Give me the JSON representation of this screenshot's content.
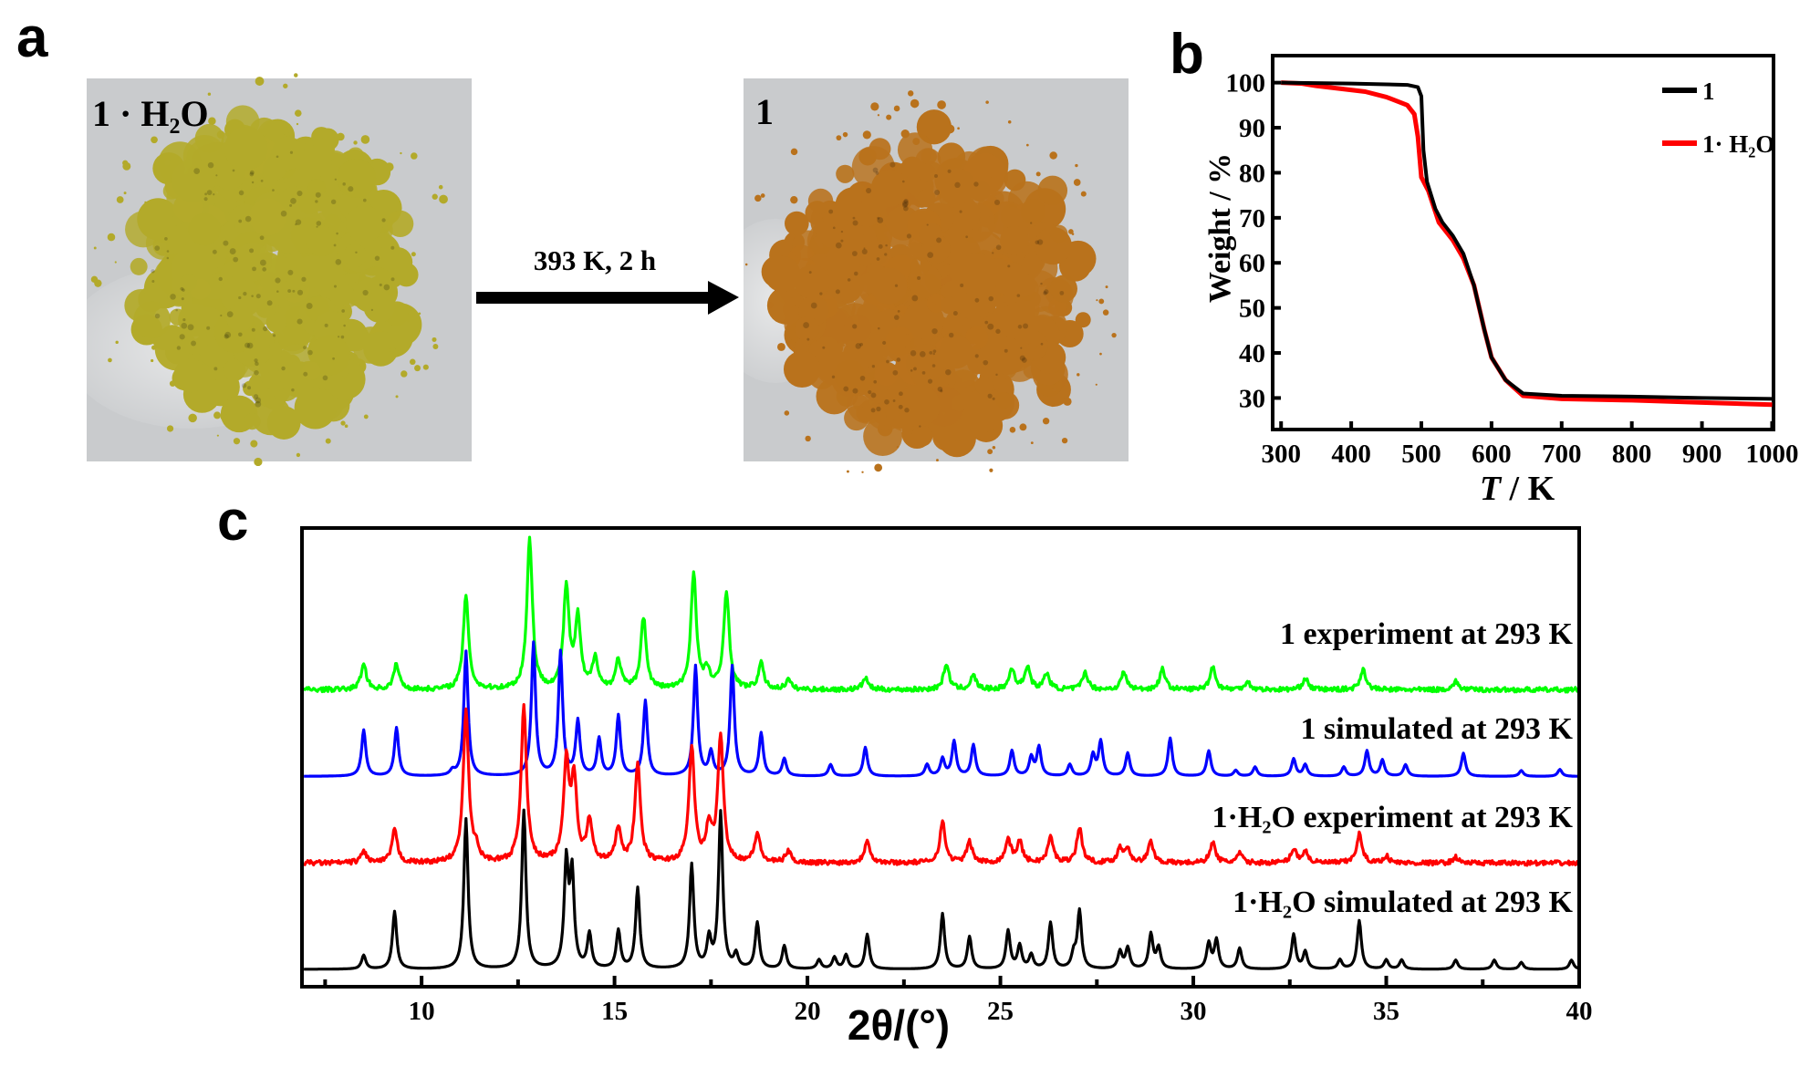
{
  "panel_labels": {
    "a": "a",
    "b": "b",
    "c": "c"
  },
  "photos": {
    "left_label": "1 · H₂O",
    "right_label": "1",
    "arrow_label": "393 K, 2 h",
    "left_color": "#b3aa2a",
    "right_color": "#b9721c",
    "background_color": "#c9cbcd"
  },
  "chart_data": [
    {
      "type": "line",
      "panel": "b",
      "title": "",
      "xlabel_italic": "T",
      "xlabel_unit": " / K",
      "ylabel": "Weight / %",
      "xlim": [
        288,
        1002
      ],
      "ylim": [
        23,
        106
      ],
      "xticks": [
        300,
        400,
        500,
        600,
        700,
        800,
        900,
        1000
      ],
      "yticks": [
        30,
        40,
        50,
        60,
        70,
        80,
        90,
        100
      ],
      "legend_position": "top-right",
      "series": [
        {
          "name": "1",
          "color": "#000000",
          "x": [
            300,
            400,
            480,
            495,
            500,
            503,
            508,
            520,
            530,
            545,
            560,
            575,
            590,
            600,
            620,
            645,
            700,
            800,
            900,
            1000
          ],
          "y": [
            100,
            99.8,
            99.5,
            99,
            97,
            85,
            78,
            72,
            69,
            66,
            62,
            55,
            45,
            39,
            34,
            31,
            30.5,
            30.3,
            30,
            29.8
          ]
        },
        {
          "name": "1· H₂O",
          "color": "#ff0000",
          "x": [
            300,
            330,
            350,
            420,
            450,
            480,
            490,
            495,
            500,
            510,
            525,
            545,
            560,
            575,
            590,
            600,
            620,
            645,
            700,
            800,
            900,
            1000
          ],
          "y": [
            100,
            99.8,
            99.3,
            98,
            96.8,
            95,
            93,
            88,
            79,
            76,
            69,
            65,
            61,
            55,
            45,
            39,
            34,
            30.5,
            29.8,
            29.5,
            29,
            28.5
          ]
        }
      ]
    },
    {
      "type": "line",
      "panel": "c",
      "title": "",
      "xlabel": "2θ/(°)",
      "ylabel": "",
      "xlim": [
        6.9,
        40
      ],
      "ylim": [
        0,
        397
      ],
      "xticks": [
        10,
        15,
        20,
        25,
        30,
        35,
        40
      ],
      "yunit": "a.u. (stacked, offset)",
      "series": [
        {
          "name": "1 experiment at 293 K",
          "color": "#00ff00",
          "offset": 257,
          "experimental": true,
          "peaks": [
            [
              8.5,
              22
            ],
            [
              9.35,
              22
            ],
            [
              11.15,
              80
            ],
            [
              12.8,
              130
            ],
            [
              13.75,
              88
            ],
            [
              14.05,
              60
            ],
            [
              14.5,
              27
            ],
            [
              15.1,
              25
            ],
            [
              15.75,
              62
            ],
            [
              17.05,
              100
            ],
            [
              17.4,
              15
            ],
            [
              17.9,
              85
            ],
            [
              18.8,
              22
            ],
            [
              19.5,
              8
            ],
            [
              21.5,
              10
            ],
            [
              23.6,
              22
            ],
            [
              24.3,
              12
            ],
            [
              25.3,
              18
            ],
            [
              25.7,
              20
            ],
            [
              26.2,
              14
            ],
            [
              27.2,
              15
            ],
            [
              28.2,
              15
            ],
            [
              29.2,
              18
            ],
            [
              30.5,
              20
            ],
            [
              31.4,
              7
            ],
            [
              32.9,
              10
            ],
            [
              34.4,
              18
            ],
            [
              36.8,
              7
            ]
          ]
        },
        {
          "name": "1 simulated at 293 K",
          "color": "#0000ff",
          "offset": 182,
          "experimental": false,
          "peaks": [
            [
              8.5,
              40
            ],
            [
              9.35,
              42
            ],
            [
              10.8,
              4
            ],
            [
              11.15,
              108
            ],
            [
              12.9,
              115
            ],
            [
              13.6,
              107
            ],
            [
              14.05,
              47
            ],
            [
              14.6,
              32
            ],
            [
              15.1,
              52
            ],
            [
              15.8,
              65
            ],
            [
              17.1,
              95
            ],
            [
              17.5,
              20
            ],
            [
              18.05,
              95
            ],
            [
              18.8,
              37
            ],
            [
              19.4,
              15
            ],
            [
              20.6,
              10
            ],
            [
              21.5,
              25
            ],
            [
              23.1,
              10
            ],
            [
              23.5,
              15
            ],
            [
              23.8,
              30
            ],
            [
              24.3,
              27
            ],
            [
              25.3,
              22
            ],
            [
              25.8,
              16
            ],
            [
              26.0,
              25
            ],
            [
              26.8,
              10
            ],
            [
              27.4,
              18
            ],
            [
              27.6,
              30
            ],
            [
              28.3,
              20
            ],
            [
              29.4,
              33
            ],
            [
              30.4,
              22
            ],
            [
              31.1,
              5
            ],
            [
              31.6,
              8
            ],
            [
              32.6,
              15
            ],
            [
              32.9,
              10
            ],
            [
              33.9,
              8
            ],
            [
              34.5,
              22
            ],
            [
              34.9,
              14
            ],
            [
              35.5,
              10
            ],
            [
              37.0,
              20
            ],
            [
              38.5,
              5
            ],
            [
              39.5,
              6
            ]
          ]
        },
        {
          "name": "1·H₂O experiment at 293 K",
          "color": "#ff0000",
          "offset": 107,
          "experimental": true,
          "peaks": [
            [
              8.5,
              10
            ],
            [
              9.3,
              28
            ],
            [
              11.15,
              130
            ],
            [
              11.4,
              10
            ],
            [
              12.65,
              135
            ],
            [
              13.75,
              85
            ],
            [
              13.95,
              70
            ],
            [
              14.35,
              35
            ],
            [
              15.1,
              30
            ],
            [
              15.6,
              85
            ],
            [
              17.0,
              100
            ],
            [
              17.45,
              30
            ],
            [
              17.75,
              110
            ],
            [
              18.7,
              25
            ],
            [
              19.5,
              10
            ],
            [
              21.55,
              20
            ],
            [
              23.5,
              35
            ],
            [
              24.2,
              18
            ],
            [
              25.2,
              20
            ],
            [
              25.5,
              18
            ],
            [
              26.3,
              22
            ],
            [
              27.05,
              30
            ],
            [
              28.1,
              12
            ],
            [
              28.3,
              12
            ],
            [
              28.9,
              18
            ],
            [
              30.5,
              18
            ],
            [
              31.2,
              8
            ],
            [
              32.6,
              12
            ],
            [
              32.9,
              10
            ],
            [
              34.3,
              25
            ],
            [
              35.0,
              6
            ],
            [
              36.8,
              5
            ]
          ]
        },
        {
          "name": "1·H₂O simulated at 293 K",
          "color": "#000000",
          "offset": 15,
          "experimental": false,
          "peaks": [
            [
              8.5,
              12
            ],
            [
              9.3,
              50
            ],
            [
              11.15,
              130
            ],
            [
              12.65,
              137
            ],
            [
              13.75,
              90
            ],
            [
              13.9,
              80
            ],
            [
              14.35,
              30
            ],
            [
              15.1,
              33
            ],
            [
              15.6,
              70
            ],
            [
              17.0,
              90
            ],
            [
              17.45,
              25
            ],
            [
              17.75,
              135
            ],
            [
              18.15,
              12
            ],
            [
              18.7,
              40
            ],
            [
              19.4,
              20
            ],
            [
              20.3,
              8
            ],
            [
              20.7,
              10
            ],
            [
              21.0,
              12
            ],
            [
              21.55,
              30
            ],
            [
              23.5,
              48
            ],
            [
              24.2,
              28
            ],
            [
              25.2,
              33
            ],
            [
              25.5,
              20
            ],
            [
              25.8,
              12
            ],
            [
              26.3,
              40
            ],
            [
              26.9,
              12
            ],
            [
              27.05,
              50
            ],
            [
              28.1,
              15
            ],
            [
              28.3,
              18
            ],
            [
              28.9,
              30
            ],
            [
              29.1,
              18
            ],
            [
              30.4,
              22
            ],
            [
              30.6,
              25
            ],
            [
              31.2,
              18
            ],
            [
              32.6,
              30
            ],
            [
              32.9,
              15
            ],
            [
              33.8,
              8
            ],
            [
              34.3,
              42
            ],
            [
              35.0,
              8
            ],
            [
              35.4,
              8
            ],
            [
              36.8,
              8
            ],
            [
              37.8,
              8
            ],
            [
              38.5,
              6
            ],
            [
              39.8,
              8
            ]
          ]
        }
      ]
    }
  ]
}
